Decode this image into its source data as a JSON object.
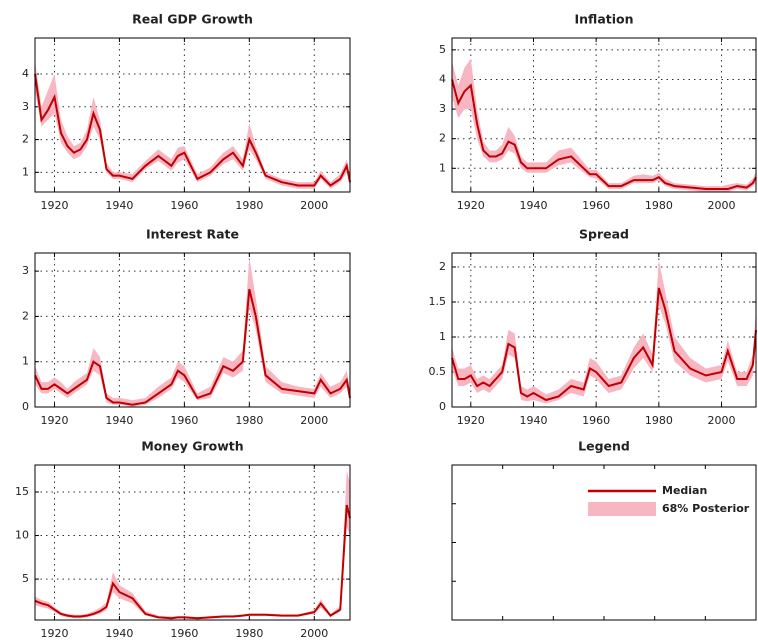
{
  "chart_data": [
    {
      "type": "line",
      "title": "Real GDP Growth",
      "x": [
        1914,
        1916,
        1918,
        1920,
        1922,
        1924,
        1926,
        1928,
        1930,
        1932,
        1934,
        1936,
        1938,
        1940,
        1944,
        1948,
        1952,
        1956,
        1958,
        1960,
        1964,
        1968,
        1972,
        1975,
        1978,
        1980,
        1982,
        1985,
        1990,
        1995,
        2000,
        2002,
        2005,
        2008,
        2010,
        2011
      ],
      "median": [
        4.0,
        2.6,
        2.9,
        3.3,
        2.2,
        1.8,
        1.6,
        1.7,
        2.0,
        2.8,
        2.3,
        1.1,
        0.9,
        0.9,
        0.8,
        1.2,
        1.5,
        1.2,
        1.5,
        1.6,
        0.8,
        1.0,
        1.4,
        1.6,
        1.2,
        2.0,
        1.6,
        0.9,
        0.7,
        0.6,
        0.6,
        0.9,
        0.6,
        0.8,
        1.2,
        0.7
      ],
      "lower": [
        3.5,
        2.4,
        2.6,
        2.8,
        1.9,
        1.6,
        1.4,
        1.5,
        1.8,
        2.4,
        2.0,
        1.0,
        0.8,
        0.8,
        0.7,
        1.1,
        1.35,
        1.05,
        1.3,
        1.4,
        0.7,
        0.9,
        1.25,
        1.4,
        1.05,
        1.7,
        1.4,
        0.8,
        0.6,
        0.5,
        0.5,
        0.8,
        0.5,
        0.7,
        1.0,
        0.6
      ],
      "upper": [
        4.4,
        3.0,
        3.5,
        4.0,
        2.6,
        2.1,
        1.8,
        1.9,
        2.3,
        3.3,
        2.6,
        1.3,
        1.0,
        1.0,
        0.95,
        1.35,
        1.7,
        1.4,
        1.75,
        1.8,
        0.95,
        1.15,
        1.6,
        1.8,
        1.4,
        2.5,
        1.8,
        1.0,
        0.8,
        0.7,
        0.7,
        1.05,
        0.7,
        0.95,
        1.4,
        0.85
      ],
      "xlim": [
        1914,
        2011
      ],
      "xticks": [
        1920,
        1940,
        1960,
        1980,
        2000
      ],
      "ylim": [
        0.4,
        5.1
      ],
      "yticks": [
        1,
        2,
        3,
        4
      ],
      "grid": true
    },
    {
      "type": "line",
      "title": "Inflation",
      "x": [
        1914,
        1916,
        1918,
        1920,
        1922,
        1924,
        1926,
        1928,
        1930,
        1932,
        1934,
        1936,
        1938,
        1940,
        1944,
        1948,
        1952,
        1956,
        1958,
        1960,
        1964,
        1968,
        1972,
        1975,
        1978,
        1980,
        1982,
        1985,
        1990,
        1995,
        2000,
        2002,
        2005,
        2008,
        2010,
        2011
      ],
      "median": [
        4.0,
        3.2,
        3.6,
        3.8,
        2.5,
        1.6,
        1.4,
        1.4,
        1.5,
        1.9,
        1.8,
        1.2,
        1.0,
        1.0,
        1.0,
        1.3,
        1.4,
        1.0,
        0.8,
        0.8,
        0.4,
        0.4,
        0.6,
        0.6,
        0.6,
        0.7,
        0.5,
        0.4,
        0.35,
        0.3,
        0.3,
        0.3,
        0.4,
        0.35,
        0.5,
        0.7
      ],
      "lower": [
        3.4,
        2.7,
        3.0,
        3.0,
        2.0,
        1.4,
        1.2,
        1.2,
        1.3,
        1.6,
        1.5,
        1.0,
        0.85,
        0.85,
        0.85,
        1.1,
        1.2,
        0.85,
        0.7,
        0.65,
        0.3,
        0.3,
        0.5,
        0.5,
        0.5,
        0.6,
        0.4,
        0.3,
        0.25,
        0.2,
        0.2,
        0.2,
        0.3,
        0.25,
        0.4,
        0.5
      ],
      "upper": [
        4.6,
        3.8,
        4.4,
        4.7,
        3.0,
        1.9,
        1.6,
        1.6,
        1.8,
        2.4,
        2.1,
        1.4,
        1.2,
        1.2,
        1.2,
        1.6,
        1.7,
        1.2,
        0.95,
        0.95,
        0.5,
        0.5,
        0.75,
        0.8,
        0.75,
        0.85,
        0.65,
        0.5,
        0.45,
        0.4,
        0.4,
        0.45,
        0.5,
        0.45,
        0.65,
        0.9
      ],
      "xlim": [
        1914,
        2011
      ],
      "xticks": [
        1920,
        1940,
        1960,
        1980,
        2000
      ],
      "ylim": [
        0.2,
        5.4
      ],
      "yticks": [
        1,
        2,
        3,
        4,
        5
      ],
      "grid": true
    },
    {
      "type": "line",
      "title": "Interest Rate",
      "x": [
        1914,
        1916,
        1918,
        1920,
        1922,
        1924,
        1926,
        1928,
        1930,
        1932,
        1934,
        1936,
        1938,
        1940,
        1944,
        1948,
        1952,
        1956,
        1958,
        1960,
        1964,
        1968,
        1972,
        1975,
        1978,
        1980,
        1982,
        1985,
        1990,
        1995,
        2000,
        2002,
        2005,
        2008,
        2010,
        2011
      ],
      "median": [
        0.7,
        0.4,
        0.4,
        0.5,
        0.4,
        0.3,
        0.4,
        0.5,
        0.6,
        1.0,
        0.9,
        0.2,
        0.1,
        0.1,
        0.05,
        0.1,
        0.3,
        0.5,
        0.8,
        0.7,
        0.2,
        0.3,
        0.9,
        0.8,
        1.0,
        2.6,
        2.0,
        0.7,
        0.4,
        0.35,
        0.3,
        0.6,
        0.3,
        0.4,
        0.6,
        0.2
      ],
      "lower": [
        0.5,
        0.3,
        0.3,
        0.4,
        0.3,
        0.2,
        0.3,
        0.4,
        0.5,
        0.8,
        0.7,
        0.1,
        0.05,
        0.05,
        0.0,
        0.05,
        0.2,
        0.4,
        0.65,
        0.55,
        0.15,
        0.2,
        0.75,
        0.65,
        0.8,
        2.2,
        1.7,
        0.55,
        0.3,
        0.25,
        0.2,
        0.45,
        0.2,
        0.3,
        0.45,
        0.1
      ],
      "upper": [
        0.9,
        0.55,
        0.55,
        0.65,
        0.55,
        0.4,
        0.55,
        0.65,
        0.75,
        1.3,
        1.1,
        0.3,
        0.2,
        0.2,
        0.15,
        0.2,
        0.45,
        0.65,
        1.0,
        0.9,
        0.3,
        0.45,
        1.1,
        1.0,
        1.25,
        3.3,
        2.4,
        0.9,
        0.55,
        0.45,
        0.4,
        0.75,
        0.45,
        0.55,
        0.8,
        0.35
      ],
      "xlim": [
        1914,
        2011
      ],
      "xticks": [
        1920,
        1940,
        1960,
        1980,
        2000
      ],
      "ylim": [
        0,
        3.4
      ],
      "yticks": [
        0,
        1,
        2,
        3
      ],
      "grid": true
    },
    {
      "type": "line",
      "title": "Spread",
      "x": [
        1914,
        1916,
        1918,
        1920,
        1922,
        1924,
        1926,
        1928,
        1930,
        1932,
        1934,
        1936,
        1938,
        1940,
        1944,
        1948,
        1952,
        1956,
        1958,
        1960,
        1964,
        1968,
        1972,
        1975,
        1978,
        1980,
        1982,
        1985,
        1990,
        1995,
        2000,
        2002,
        2005,
        2008,
        2010,
        2011
      ],
      "median": [
        0.7,
        0.4,
        0.4,
        0.45,
        0.3,
        0.35,
        0.3,
        0.4,
        0.5,
        0.9,
        0.85,
        0.2,
        0.15,
        0.2,
        0.1,
        0.15,
        0.3,
        0.25,
        0.55,
        0.5,
        0.3,
        0.35,
        0.7,
        0.85,
        0.6,
        1.7,
        1.4,
        0.8,
        0.55,
        0.45,
        0.5,
        0.8,
        0.4,
        0.4,
        0.6,
        1.1
      ],
      "lower": [
        0.55,
        0.3,
        0.3,
        0.35,
        0.2,
        0.25,
        0.2,
        0.3,
        0.4,
        0.75,
        0.7,
        0.1,
        0.08,
        0.1,
        0.05,
        0.1,
        0.2,
        0.15,
        0.45,
        0.4,
        0.2,
        0.25,
        0.55,
        0.7,
        0.5,
        1.45,
        1.2,
        0.65,
        0.45,
        0.35,
        0.4,
        0.65,
        0.3,
        0.3,
        0.45,
        0.9
      ],
      "upper": [
        0.85,
        0.55,
        0.55,
        0.6,
        0.4,
        0.45,
        0.4,
        0.5,
        0.6,
        1.1,
        1.05,
        0.3,
        0.25,
        0.3,
        0.18,
        0.25,
        0.4,
        0.35,
        0.7,
        0.65,
        0.4,
        0.45,
        0.85,
        1.05,
        0.75,
        2.1,
        1.65,
        1.0,
        0.7,
        0.55,
        0.6,
        0.95,
        0.5,
        0.5,
        0.75,
        1.4
      ],
      "xlim": [
        1914,
        2011
      ],
      "xticks": [
        1920,
        1940,
        1960,
        1980,
        2000
      ],
      "ylim": [
        0,
        2.2
      ],
      "yticks": [
        0,
        0.5,
        1,
        1.5,
        2
      ],
      "grid": true
    },
    {
      "type": "line",
      "title": "Money Growth",
      "x": [
        1914,
        1916,
        1918,
        1920,
        1922,
        1924,
        1926,
        1928,
        1930,
        1932,
        1934,
        1936,
        1938,
        1940,
        1944,
        1948,
        1952,
        1956,
        1958,
        1960,
        1964,
        1968,
        1972,
        1975,
        1978,
        1980,
        1982,
        1985,
        1990,
        1995,
        2000,
        2002,
        2005,
        2008,
        2010,
        2011
      ],
      "median": [
        2.5,
        2.2,
        2.0,
        1.5,
        1.0,
        0.8,
        0.7,
        0.7,
        0.8,
        1.0,
        1.3,
        1.8,
        4.5,
        3.5,
        2.8,
        1.0,
        0.6,
        0.5,
        0.6,
        0.6,
        0.5,
        0.6,
        0.7,
        0.7,
        0.8,
        0.9,
        0.9,
        0.9,
        0.8,
        0.8,
        1.2,
        2.2,
        0.8,
        1.5,
        13.5,
        12.0
      ],
      "lower": [
        2.0,
        1.8,
        1.6,
        1.2,
        0.8,
        0.6,
        0.5,
        0.5,
        0.6,
        0.8,
        1.0,
        1.4,
        3.5,
        2.8,
        2.2,
        0.8,
        0.5,
        0.4,
        0.5,
        0.5,
        0.4,
        0.5,
        0.6,
        0.6,
        0.7,
        0.8,
        0.8,
        0.8,
        0.7,
        0.7,
        1.0,
        1.7,
        0.7,
        1.2,
        11.0,
        10.0
      ],
      "upper": [
        3.0,
        2.6,
        2.4,
        1.8,
        1.2,
        1.0,
        0.9,
        0.9,
        1.0,
        1.3,
        1.7,
        2.3,
        5.8,
        4.3,
        3.4,
        1.3,
        0.8,
        0.7,
        0.75,
        0.75,
        0.65,
        0.75,
        0.85,
        0.85,
        0.95,
        1.05,
        1.05,
        1.05,
        0.95,
        0.95,
        1.4,
        2.7,
        1.0,
        1.9,
        17.5,
        16.0
      ],
      "xlim": [
        1914,
        2011
      ],
      "xticks": [
        1920,
        1940,
        1960,
        1980,
        2000
      ],
      "ylim": [
        0.3,
        18.1
      ],
      "yticks": [
        5,
        10,
        15
      ],
      "grid": true
    }
  ],
  "legend": {
    "title": "Legend",
    "entries": [
      {
        "name": "Median",
        "color": "#c00000"
      },
      {
        "name": "68% Posterior",
        "color": "#f7b6c2"
      }
    ]
  }
}
